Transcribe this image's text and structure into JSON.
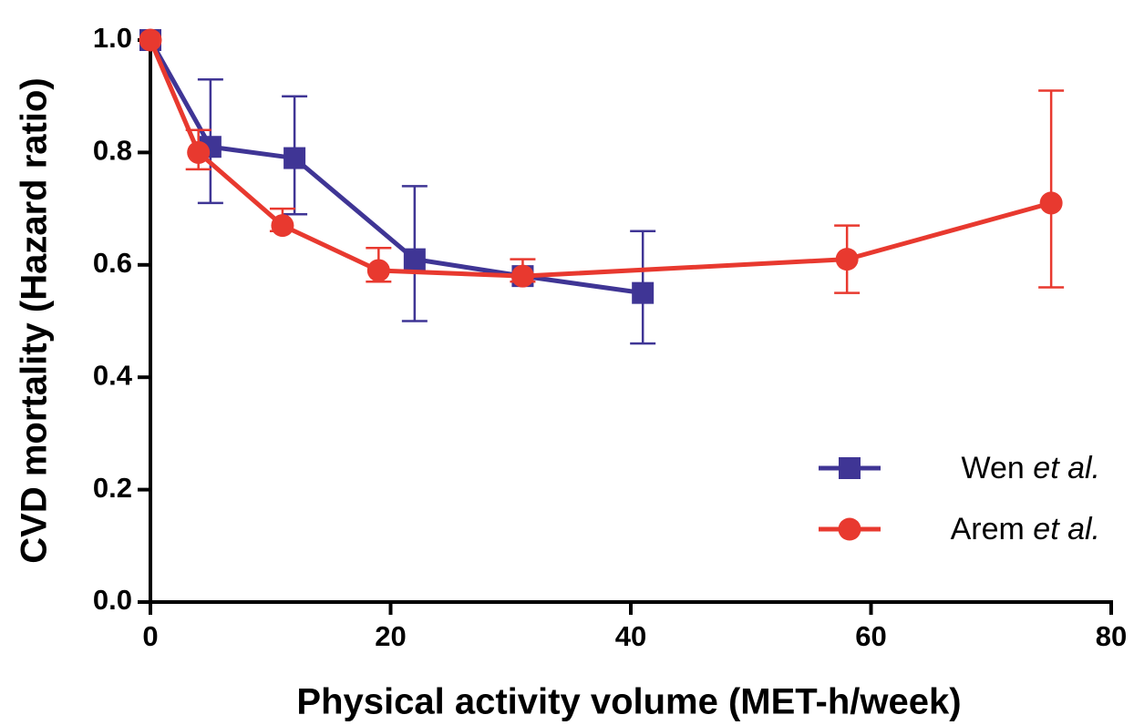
{
  "chart_data": {
    "type": "line",
    "x_label": "Physical activity volume (MET-h/week)",
    "y_label": "CVD mortality (Hazard ratio)",
    "xlim": [
      0,
      80
    ],
    "xticks": [
      0,
      20,
      40,
      60,
      80
    ],
    "ylim": [
      0,
      1.0
    ],
    "yticks": [
      {
        "value": 0,
        "label": "0.0"
      },
      {
        "value": 0.2,
        "label": "0.2"
      },
      {
        "value": 0.4,
        "label": "0.4"
      },
      {
        "value": 0.6,
        "label": "0.6"
      },
      {
        "value": 0.8,
        "label": "0.8"
      },
      {
        "value": 1.0,
        "label": "1.0"
      }
    ],
    "legend": "lower right",
    "series": [
      {
        "name": "Wen et al.",
        "color": "#3f3595",
        "marker": "square",
        "x": [
          0,
          5,
          12,
          22,
          31,
          41
        ],
        "values": [
          1.0,
          0.81,
          0.79,
          0.61,
          0.58,
          0.55
        ],
        "lower": [
          null,
          0.71,
          0.69,
          0.5,
          null,
          0.46
        ],
        "upper": [
          null,
          0.93,
          0.9,
          0.74,
          null,
          0.66
        ]
      },
      {
        "name": "Arem et al.",
        "color": "#e8392f",
        "marker": "circle",
        "x": [
          0,
          4,
          11,
          19,
          31,
          58,
          75
        ],
        "values": [
          1.0,
          0.8,
          0.67,
          0.59,
          0.58,
          0.61,
          0.71
        ],
        "lower": [
          null,
          0.77,
          0.66,
          0.57,
          0.57,
          0.55,
          0.56
        ],
        "upper": [
          null,
          0.84,
          0.7,
          0.63,
          0.61,
          0.67,
          0.91
        ]
      }
    ]
  }
}
